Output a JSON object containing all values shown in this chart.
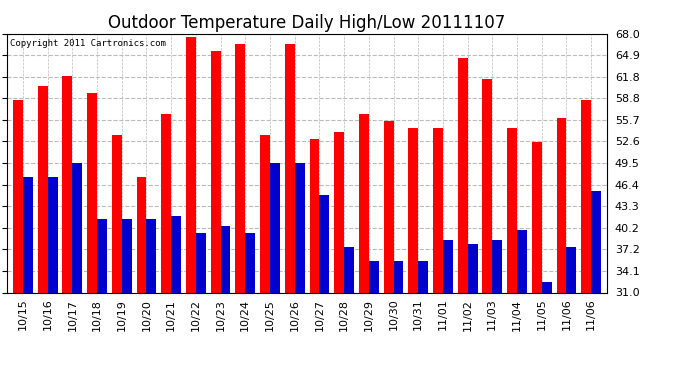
{
  "title": "Outdoor Temperature Daily High/Low 20111107",
  "copyright_text": "Copyright 2011 Cartronics.com",
  "dates": [
    "10/15",
    "10/16",
    "10/17",
    "10/18",
    "10/19",
    "10/20",
    "10/21",
    "10/22",
    "10/23",
    "10/24",
    "10/25",
    "10/26",
    "10/27",
    "10/28",
    "10/29",
    "10/30",
    "10/31",
    "11/01",
    "11/02",
    "11/03",
    "11/04",
    "11/05",
    "11/06",
    "11/06"
  ],
  "highs": [
    58.5,
    60.5,
    62.0,
    59.5,
    53.5,
    47.5,
    56.5,
    67.5,
    65.5,
    66.5,
    53.5,
    66.5,
    53.0,
    54.0,
    56.5,
    55.5,
    54.5,
    54.5,
    64.5,
    61.5,
    54.5,
    52.5,
    56.0,
    58.5
  ],
  "lows": [
    47.5,
    47.5,
    49.5,
    41.5,
    41.5,
    41.5,
    42.0,
    39.5,
    40.5,
    39.5,
    49.5,
    49.5,
    45.0,
    37.5,
    35.5,
    35.5,
    35.5,
    38.5,
    38.0,
    38.5,
    40.0,
    32.5,
    37.5,
    45.5
  ],
  "ylim": [
    31.0,
    68.0
  ],
  "yticks": [
    31.0,
    34.1,
    37.2,
    40.2,
    43.3,
    46.4,
    49.5,
    52.6,
    55.7,
    58.8,
    61.8,
    64.9,
    68.0
  ],
  "high_color": "#ff0000",
  "low_color": "#0000cd",
  "bg_color": "#ffffff",
  "grid_color": "#bbbbbb",
  "title_fontsize": 12,
  "tick_fontsize": 8,
  "bar_width": 0.4,
  "figsize": [
    6.9,
    3.75
  ],
  "dpi": 100
}
